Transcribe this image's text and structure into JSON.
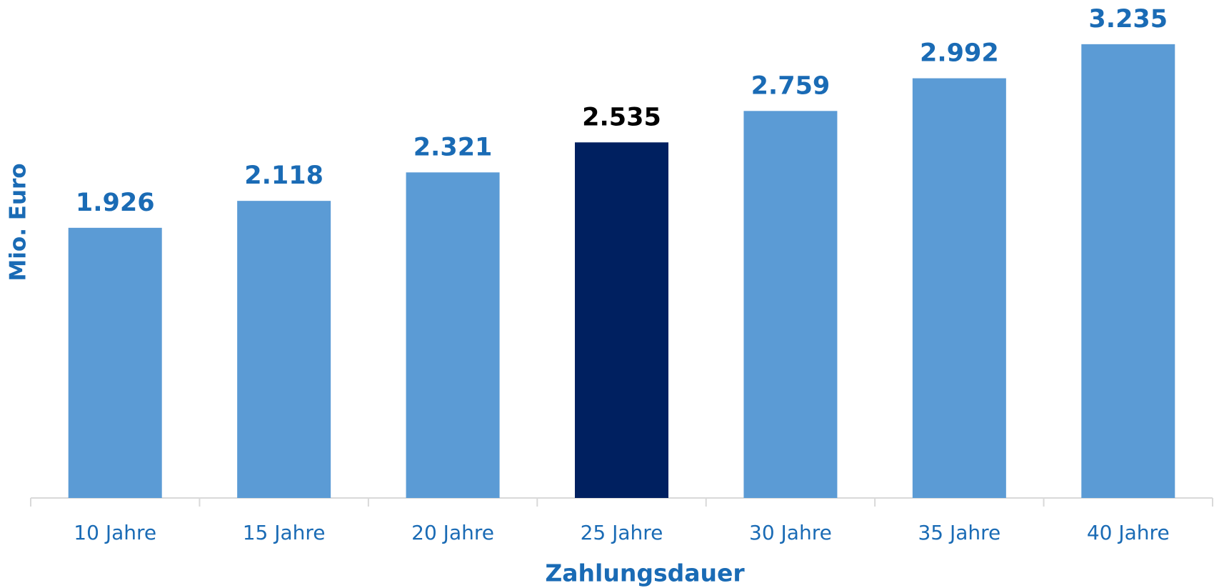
{
  "chart_data": {
    "type": "bar",
    "x_label": "Zahlungsdauer",
    "y_label": "Mio. Euro",
    "categories": [
      "10 Jahre",
      "15 Jahre",
      "20 Jahre",
      "25 Jahre",
      "30 Jahre",
      "35 Jahre",
      "40 Jahre"
    ],
    "values": [
      1926,
      2118,
      2321,
      2535,
      2759,
      2992,
      3235
    ],
    "value_labels": [
      "1.926",
      "2.118",
      "2.321",
      "2.535",
      "2.759",
      "2.992",
      "3.235"
    ],
    "colors": [
      "#5b9bd5",
      "#5b9bd5",
      "#5b9bd5",
      "#002060",
      "#5b9bd5",
      "#5b9bd5",
      "#5b9bd5"
    ],
    "label_colors": [
      "#1a6bb5",
      "#1a6bb5",
      "#1a6bb5",
      "#000000",
      "#1a6bb5",
      "#1a6bb5",
      "#1a6bb5"
    ],
    "ylim": [
      0,
      3550
    ],
    "grid": false
  }
}
